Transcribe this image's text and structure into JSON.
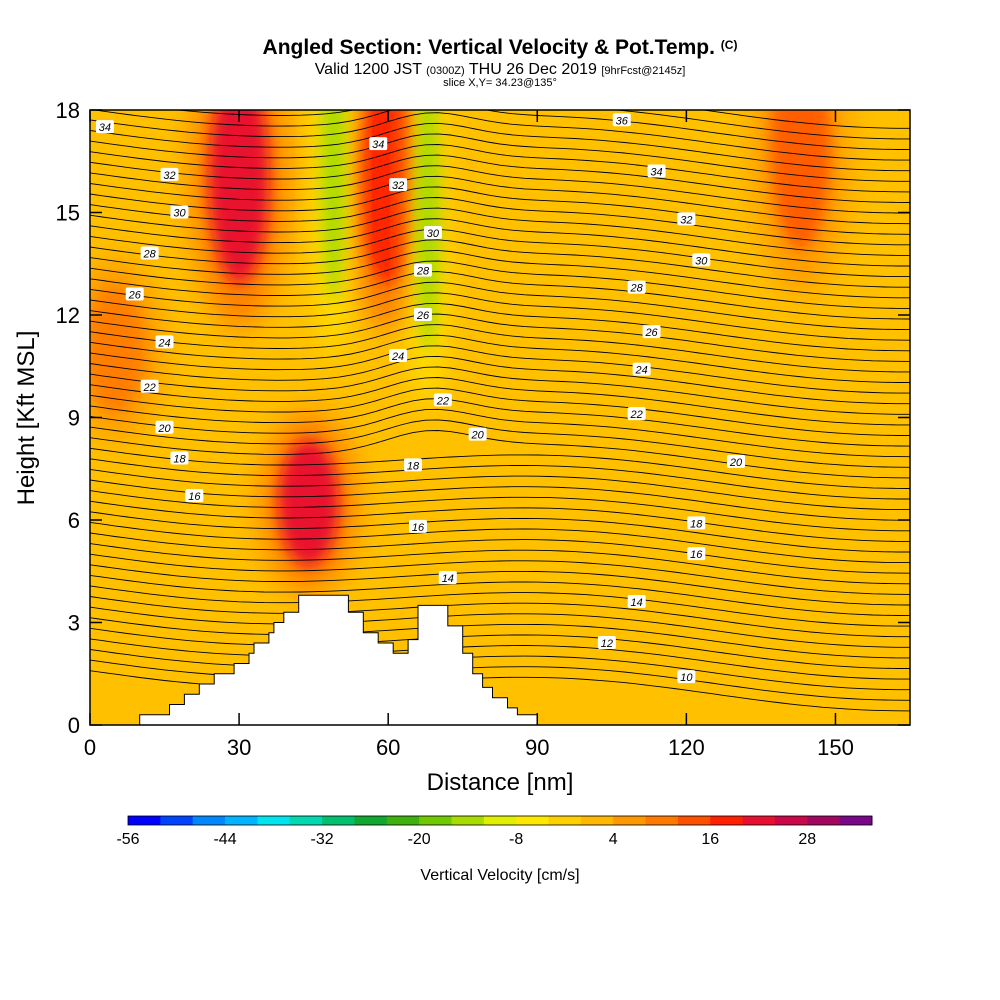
{
  "title": {
    "main": "Angled Section: Vertical Velocity & Pot.Temp.",
    "main_tag": "(C)",
    "valid_prefix": "Valid 1200 JST",
    "valid_utc": "(0300Z)",
    "valid_date": "THU 26 Dec 2019",
    "forecast": "[9hrFcst@2145z]",
    "slice": "slice X,Y= 34.23@135°"
  },
  "chart_data": {
    "type": "heatmap",
    "title": "Angled Section: Vertical Velocity & Pot.Temp.",
    "xlabel": "Distance [nm]",
    "ylabel": "Height [Kft MSL]",
    "xlim": [
      0,
      165
    ],
    "ylim": [
      0,
      18
    ],
    "x_ticks": [
      0,
      30,
      60,
      90,
      120,
      150
    ],
    "y_ticks": [
      0,
      3,
      6,
      9,
      12,
      15,
      18
    ],
    "x_tick_labels": [
      "0",
      "30",
      "60",
      "90",
      "120",
      "150"
    ],
    "y_tick_labels": [
      "0",
      "3",
      "6",
      "9",
      "12",
      "15",
      "18"
    ],
    "colorbar": {
      "label": "Vertical Velocity [cm/s]",
      "min": -56,
      "max": 36,
      "step": 4,
      "tick_values": [
        -56,
        -44,
        -32,
        -20,
        -8,
        4,
        16,
        28
      ],
      "tick_labels": [
        "-56",
        "-44",
        "-32",
        "-20",
        "-8",
        "4",
        "16",
        "28"
      ],
      "colors": [
        "#0000ff",
        "#0044ff",
        "#0088ff",
        "#00b4ff",
        "#00e4ee",
        "#00d8b0",
        "#00c070",
        "#10a830",
        "#40b010",
        "#70c800",
        "#a8dc00",
        "#e0ee00",
        "#ffe800",
        "#ffd000",
        "#ffb800",
        "#ff9800",
        "#ff7800",
        "#ff5000",
        "#ff2000",
        "#e81030",
        "#c80848",
        "#a00860",
        "#780888"
      ]
    },
    "terrain_profile": [
      [
        0,
        0
      ],
      [
        10,
        0
      ],
      [
        10,
        0.3
      ],
      [
        16,
        0.3
      ],
      [
        16,
        0.6
      ],
      [
        19,
        0.6
      ],
      [
        19,
        0.9
      ],
      [
        22,
        0.9
      ],
      [
        22,
        1.2
      ],
      [
        25,
        1.2
      ],
      [
        25,
        1.5
      ],
      [
        29,
        1.5
      ],
      [
        29,
        1.8
      ],
      [
        32,
        1.8
      ],
      [
        32,
        2.1
      ],
      [
        33,
        2.1
      ],
      [
        33,
        2.4
      ],
      [
        36,
        2.4
      ],
      [
        36,
        2.7
      ],
      [
        37,
        2.7
      ],
      [
        37,
        3.0
      ],
      [
        39,
        3.0
      ],
      [
        39,
        3.3
      ],
      [
        42,
        3.3
      ],
      [
        42,
        3.8
      ],
      [
        52,
        3.8
      ],
      [
        52,
        3.3
      ],
      [
        55,
        3.3
      ],
      [
        55,
        2.7
      ],
      [
        58,
        2.7
      ],
      [
        58,
        2.4
      ],
      [
        61,
        2.4
      ],
      [
        61,
        2.1
      ],
      [
        64,
        2.1
      ],
      [
        64,
        2.5
      ],
      [
        66,
        2.5
      ],
      [
        66,
        3.5
      ],
      [
        72,
        3.5
      ],
      [
        72,
        2.9
      ],
      [
        75,
        2.9
      ],
      [
        75,
        2.1
      ],
      [
        77,
        2.1
      ],
      [
        77,
        1.5
      ],
      [
        79,
        1.5
      ],
      [
        79,
        1.1
      ],
      [
        81,
        1.1
      ],
      [
        81,
        0.8
      ],
      [
        84,
        0.8
      ],
      [
        84,
        0.5
      ],
      [
        86,
        0.5
      ],
      [
        86,
        0.3
      ],
      [
        90,
        0.3
      ],
      [
        90,
        0
      ],
      [
        165,
        0
      ]
    ],
    "vertical_velocity_features": [
      {
        "x": 30,
        "z": 16.0,
        "value": 22
      },
      {
        "x": 44,
        "z": 6.5,
        "value": 22
      },
      {
        "x": 60,
        "z": 16.0,
        "value": 16
      },
      {
        "x": 49,
        "z": 16.5,
        "value": -16
      },
      {
        "x": 68,
        "z": 15.0,
        "value": -16
      },
      {
        "x": 143,
        "z": 17.0,
        "value": 12
      },
      {
        "x": 5,
        "z": 11.0,
        "value": 8
      }
    ],
    "contour_levels": [
      10,
      12,
      14,
      16,
      18,
      20,
      22,
      24,
      26,
      28,
      30,
      32,
      34,
      36
    ],
    "contour_labels": [
      {
        "text": "34",
        "x": 3,
        "z": 17.5
      },
      {
        "text": "34",
        "x": 58,
        "z": 17.0
      },
      {
        "text": "36",
        "x": 107,
        "z": 17.7
      },
      {
        "text": "34",
        "x": 114,
        "z": 16.2
      },
      {
        "text": "32",
        "x": 16,
        "z": 16.1
      },
      {
        "text": "32",
        "x": 62,
        "z": 15.8
      },
      {
        "text": "32",
        "x": 120,
        "z": 14.8
      },
      {
        "text": "30",
        "x": 18,
        "z": 15.0
      },
      {
        "text": "30",
        "x": 69,
        "z": 14.4
      },
      {
        "text": "30",
        "x": 123,
        "z": 13.6
      },
      {
        "text": "28",
        "x": 12,
        "z": 13.8
      },
      {
        "text": "28",
        "x": 67,
        "z": 13.3
      },
      {
        "text": "28",
        "x": 110,
        "z": 12.8
      },
      {
        "text": "26",
        "x": 9,
        "z": 12.6
      },
      {
        "text": "26",
        "x": 67,
        "z": 12.0
      },
      {
        "text": "26",
        "x": 113,
        "z": 11.5
      },
      {
        "text": "24",
        "x": 15,
        "z": 11.2
      },
      {
        "text": "24",
        "x": 62,
        "z": 10.8
      },
      {
        "text": "24",
        "x": 111,
        "z": 10.4
      },
      {
        "text": "22",
        "x": 12,
        "z": 9.9
      },
      {
        "text": "22",
        "x": 71,
        "z": 9.5
      },
      {
        "text": "22",
        "x": 110,
        "z": 9.1
      },
      {
        "text": "20",
        "x": 15,
        "z": 8.7
      },
      {
        "text": "20",
        "x": 78,
        "z": 8.5
      },
      {
        "text": "20",
        "x": 130,
        "z": 7.7
      },
      {
        "text": "18",
        "x": 18,
        "z": 7.8
      },
      {
        "text": "18",
        "x": 65,
        "z": 7.6
      },
      {
        "text": "18",
        "x": 122,
        "z": 5.9
      },
      {
        "text": "16",
        "x": 21,
        "z": 6.7
      },
      {
        "text": "16",
        "x": 66,
        "z": 5.8
      },
      {
        "text": "16",
        "x": 122,
        "z": 5.0
      },
      {
        "text": "14",
        "x": 72,
        "z": 4.3
      },
      {
        "text": "14",
        "x": 110,
        "z": 3.6
      },
      {
        "text": "12",
        "x": 104,
        "z": 2.4
      },
      {
        "text": "10",
        "x": 120,
        "z": 1.4
      }
    ]
  }
}
